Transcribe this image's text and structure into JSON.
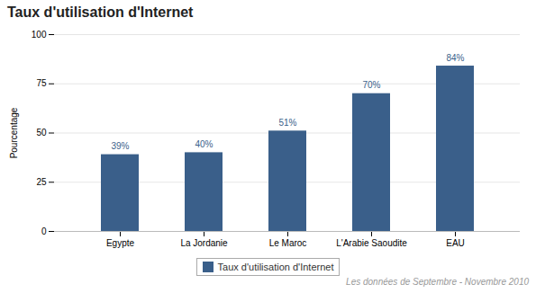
{
  "chart_data": {
    "type": "bar",
    "title": "Taux d'utilisation d'Internet",
    "categories": [
      "Egypte",
      "La Jordanie",
      "Le Maroc",
      "L'Arabie Saoudite",
      "EAU"
    ],
    "series": [
      {
        "name": "Taux d'utilisation d'Internet",
        "color": "#3a5f8a",
        "values": [
          39,
          40,
          51,
          70,
          84
        ],
        "value_labels": [
          "39%",
          "40%",
          "51%",
          "70%",
          "84%"
        ]
      }
    ],
    "ylabel": "Pourcentage",
    "ylim": [
      0,
      100
    ],
    "yticks": [
      0,
      25,
      50,
      75,
      100
    ],
    "grid": true,
    "legend": "bottom",
    "data_labels": true,
    "footnote": "Les données de Septembre - Novembre 2010"
  }
}
